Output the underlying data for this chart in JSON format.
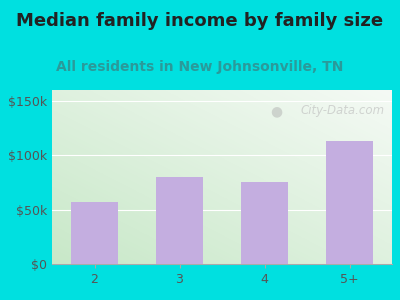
{
  "title": "Median family income by family size",
  "subtitle": "All residents in New Johnsonville, TN",
  "categories": [
    "2",
    "3",
    "4",
    "5+"
  ],
  "values": [
    57000,
    80000,
    75000,
    113000
  ],
  "bar_color": "#c4aee0",
  "bar_edgecolor": "none",
  "ylim": [
    0,
    160000
  ],
  "yticks": [
    0,
    50000,
    100000,
    150000
  ],
  "ytick_labels": [
    "$0",
    "$50k",
    "$100k",
    "$150k"
  ],
  "title_fontsize": 13,
  "title_color": "#222222",
  "subtitle_fontsize": 10,
  "subtitle_color": "#2a9a9a",
  "tick_label_fontsize": 9,
  "outer_bg_color": "#00e0e0",
  "plot_bg_top_left": "#c8e8c8",
  "plot_bg_bottom_right": "#f5faf5",
  "watermark_text": "City-Data.com",
  "watermark_color": "#bbbbbb",
  "watermark_alpha": 0.6
}
